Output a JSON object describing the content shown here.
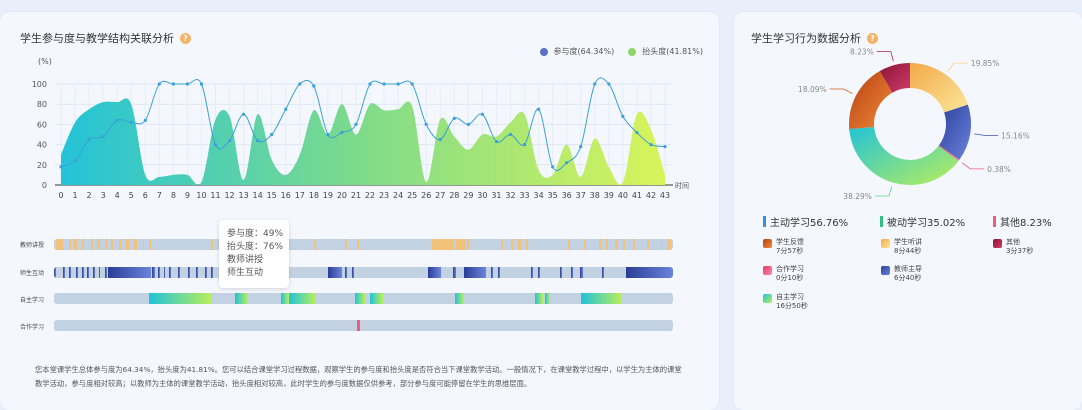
{
  "left_panel": {
    "title": "学生参与度与教学结构关联分析",
    "help_icon": "question-icon",
    "legend": [
      {
        "label": "参与度(64.34%)",
        "color": "#5a72c7"
      },
      {
        "label": "抬头度(41.81%)",
        "color": "#8fd46a"
      }
    ],
    "tooltip": {
      "line1": "参与度：49%",
      "line2": "抬头度：76%",
      "line3": "教师讲授",
      "line4": "师生互动"
    },
    "timeline_rows": [
      {
        "label": "教师讲授",
        "color": "#f3c27a"
      },
      {
        "label": "师生互动",
        "color": "#3f55b3"
      },
      {
        "label": "自主学习",
        "color": "#5cd08a"
      },
      {
        "label": "合作学习",
        "color": "#ef5b7b"
      }
    ],
    "summary": "您本堂课学生总体参与度为64.34%，抬头度为41.81%。您可以结合课堂学习过程数据，观察学生的参与度和抬头度是否符合当下课堂教学活动。一般情况下，在课堂教学过程中，以学生为主体的课堂教学活动，参与度相对较高；以教师为主体的课堂教学活动，抬头度相对较高，此时学生的参与度数据仅供参考，部分参与度可能停留在学生的思维层面。"
  },
  "right_panel": {
    "title": "学生学习行为数据分析",
    "help_icon": "question-icon",
    "categories": [
      {
        "label": "主动学习56.76%",
        "color": "#3a8ee0"
      },
      {
        "label": "被动学习35.02%",
        "color": "#2ec27e"
      },
      {
        "label": "其他8.23%",
        "color": "#ef5b7b"
      }
    ],
    "activities": [
      {
        "name": "学生反馈",
        "time": "7分57秒",
        "color": "#d65a16"
      },
      {
        "name": "学生听讲",
        "time": "8分44秒",
        "color": "#f7d37a"
      },
      {
        "name": "其他",
        "time": "3分37秒",
        "color": "#b0224c"
      },
      {
        "name": "合作学习",
        "time": "0分10秒",
        "color": "#ef5b7b"
      },
      {
        "name": "教师主导",
        "time": "6分40秒",
        "color": "#3f55b3"
      },
      {
        "name": "自主学习",
        "time": "16分50秒",
        "color": "#5cd08a"
      }
    ]
  },
  "chart_data": [
    {
      "type": "line",
      "title": "学生参与度与教学结构关联分析",
      "ylabel": "(%)",
      "xlabel": "时间",
      "ylim": [
        0,
        100
      ],
      "yticks": [
        0,
        20,
        40,
        60,
        80,
        100
      ],
      "x": [
        0,
        1,
        2,
        3,
        4,
        5,
        6,
        7,
        8,
        9,
        10,
        11,
        12,
        13,
        14,
        15,
        16,
        17,
        18,
        19,
        20,
        21,
        22,
        23,
        24,
        25,
        26,
        27,
        28,
        29,
        30,
        31,
        32,
        33,
        34,
        35,
        36,
        37,
        38,
        39,
        40,
        41,
        42,
        43
      ],
      "series": [
        {
          "name": "参与度(64.34%)",
          "type": "line",
          "color": "#3aa0d8",
          "values": [
            18,
            24,
            45,
            48,
            64,
            62,
            64,
            100,
            100,
            100,
            100,
            40,
            44,
            70,
            44,
            50,
            75,
            100,
            98,
            50,
            52,
            60,
            100,
            100,
            100,
            100,
            60,
            45,
            66,
            60,
            70,
            43,
            50,
            40,
            75,
            18,
            22,
            38,
            100,
            100,
            68,
            52,
            40,
            38
          ]
        },
        {
          "name": "抬头度(41.81%)",
          "type": "area",
          "color": "#8fd46a",
          "values": [
            30,
            62,
            75,
            82,
            82,
            80,
            10,
            8,
            10,
            10,
            3,
            65,
            68,
            5,
            70,
            25,
            10,
            30,
            74,
            50,
            80,
            50,
            80,
            74,
            75,
            78,
            3,
            65,
            48,
            35,
            50,
            48,
            62,
            70,
            15,
            10,
            40,
            8,
            46,
            18,
            3,
            70,
            55,
            10
          ]
        }
      ]
    },
    {
      "type": "pie",
      "title": "学生学习行为数据分析",
      "slices": [
        {
          "label": "19.85%",
          "value": 19.85,
          "color": "#f7d37a"
        },
        {
          "label": "15.16%",
          "value": 15.16,
          "color": "#3f55b3"
        },
        {
          "label": "0.38%",
          "value": 0.38,
          "color": "#ef5b7b"
        },
        {
          "label": "38.29%",
          "value": 38.29,
          "color": "#5cd08a"
        },
        {
          "label": "18.09%",
          "value": 18.09,
          "color": "#d65a16"
        },
        {
          "label": "8.23%",
          "value": 8.23,
          "color": "#b0224c"
        }
      ]
    }
  ]
}
